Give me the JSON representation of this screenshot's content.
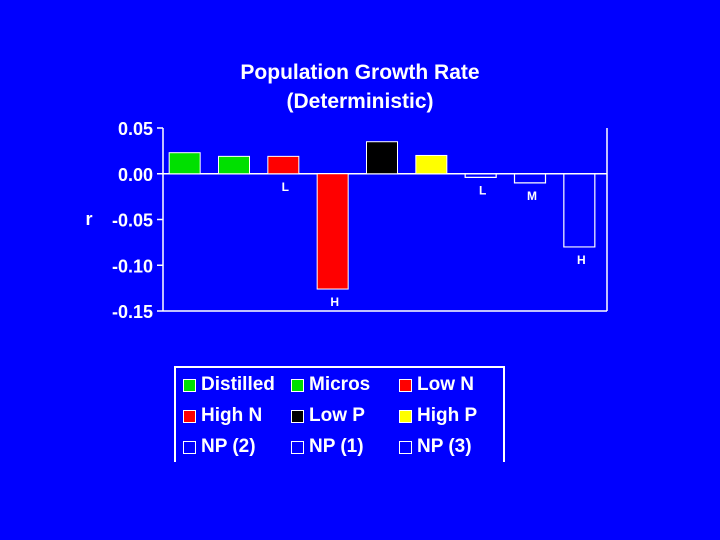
{
  "chart_data": {
    "type": "bar",
    "title": [
      "Population Growth Rate",
      "(Deterministic)"
    ],
    "ylabel": "r",
    "ylim": [
      -0.15,
      0.05
    ],
    "yticks": [
      "0.05",
      "0.00",
      "-0.05",
      "-0.10",
      "-0.15"
    ],
    "ytick_values": [
      0.05,
      0.0,
      -0.05,
      -0.1,
      -0.15
    ],
    "series": [
      {
        "name": "Distilled",
        "value": 0.023,
        "color": "#00e000",
        "filled": true
      },
      {
        "name": "Micros",
        "value": 0.019,
        "color": "#00e000",
        "filled": true
      },
      {
        "name": "Low N",
        "value": 0.019,
        "color": "#ff0000",
        "filled": true
      },
      {
        "name": "High N",
        "value": -0.126,
        "color": "#ff0000",
        "filled": true
      },
      {
        "name": "Low P",
        "value": 0.035,
        "color": "#000000",
        "filled": true
      },
      {
        "name": "High P",
        "value": 0.02,
        "color": "#ffff00",
        "filled": true
      },
      {
        "name": "NP (2)",
        "value": -0.004,
        "color": "#ffffff",
        "filled": false
      },
      {
        "name": "NP (1)",
        "value": -0.01,
        "color": "#ffffff",
        "filled": false
      },
      {
        "name": "NP (3)",
        "value": -0.08,
        "color": "#ffffff",
        "filled": false
      }
    ],
    "annotations": [
      {
        "text": "L",
        "bar": 2
      },
      {
        "text": "H",
        "bar": 3
      },
      {
        "text": "L",
        "bar": 6
      },
      {
        "text": "M",
        "bar": 7
      },
      {
        "text": "H",
        "bar": 8
      }
    ],
    "legend": [
      [
        "Distilled",
        "Micros",
        "Low N"
      ],
      [
        "High N",
        "Low P",
        "High P"
      ],
      [
        "NP (2)",
        "NP (1)",
        "NP (3)"
      ]
    ]
  }
}
